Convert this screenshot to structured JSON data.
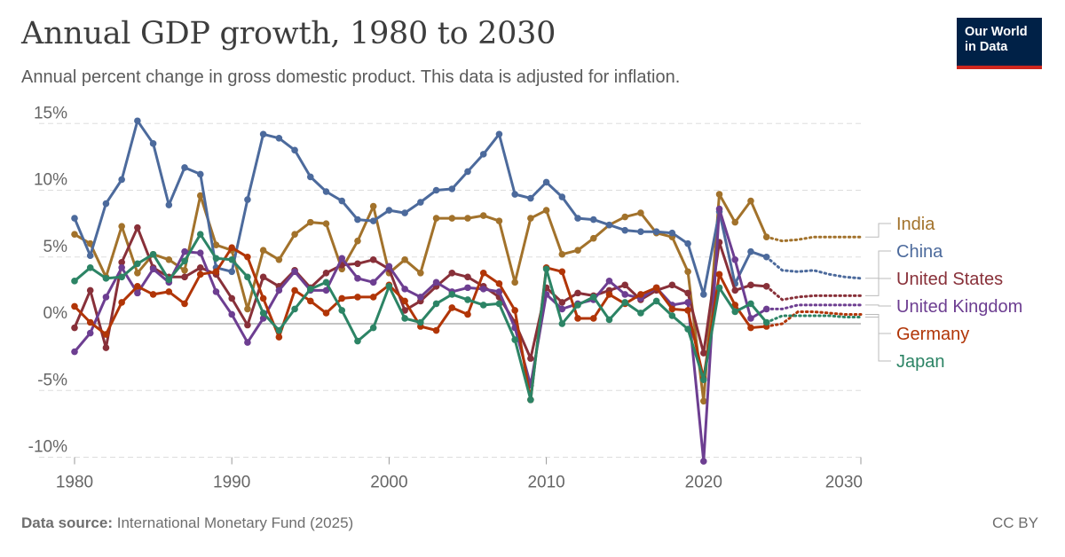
{
  "header": {
    "title": "Annual GDP growth, 1980 to 2030",
    "subtitle": "Annual percent change in gross domestic product. This data is adjusted for inflation.",
    "logo_line1": "Our World",
    "logo_line2": "in Data"
  },
  "footer": {
    "source_label": "Data source:",
    "source_text": "International Monetary Fund (2025)",
    "license": "CC BY"
  },
  "chart_data": {
    "type": "line",
    "title": "Annual GDP growth, 1980 to 2030",
    "subtitle": "Annual percent change in gross domestic product. This data is adjusted for inflation.",
    "xlim": [
      1980,
      2030
    ],
    "ylim": [
      -10,
      15
    ],
    "x_ticks": [
      1980,
      1990,
      2000,
      2010,
      2020,
      2030
    ],
    "x_tick_labels": [
      "1980",
      "1990",
      "2000",
      "2010",
      "2020",
      "2030"
    ],
    "y_ticks": [
      -10,
      -5,
      0,
      5,
      10,
      15
    ],
    "y_tick_labels": [
      "-10%",
      "-5%",
      "0%",
      "5%",
      "10%",
      "15%"
    ],
    "grid": "horizontal dashed",
    "legend": "right, labels at line ends",
    "observed_last_year": 2024,
    "forecast_style": "dotted",
    "series": [
      {
        "name": "India",
        "color": "#a2722b",
        "start": 1980,
        "values": [
          6.7,
          6.0,
          3.5,
          7.3,
          3.8,
          5.2,
          4.8,
          4.0,
          9.6,
          5.9,
          5.5,
          1.1,
          5.5,
          4.8,
          6.7,
          7.6,
          7.5,
          4.1,
          6.2,
          8.8,
          3.8,
          4.8,
          3.8,
          7.9,
          7.9,
          7.9,
          8.1,
          7.7,
          3.1,
          7.9,
          8.5,
          5.2,
          5.5,
          6.4,
          7.4,
          8.0,
          8.3,
          6.8,
          6.5,
          3.9,
          -5.8,
          9.7,
          7.6,
          9.2,
          6.5,
          6.2,
          6.3,
          6.5,
          6.5,
          6.5,
          6.5
        ]
      },
      {
        "name": "China",
        "color": "#4c6a9c",
        "start": 1980,
        "values": [
          7.9,
          5.1,
          9.0,
          10.8,
          15.2,
          13.5,
          8.9,
          11.7,
          11.2,
          4.2,
          3.9,
          9.3,
          14.2,
          13.9,
          13.0,
          11.0,
          9.9,
          9.2,
          7.8,
          7.7,
          8.5,
          8.3,
          9.1,
          10.0,
          10.1,
          11.4,
          12.7,
          14.2,
          9.7,
          9.4,
          10.6,
          9.5,
          7.9,
          7.8,
          7.4,
          7.0,
          6.9,
          6.9,
          6.8,
          6.0,
          2.2,
          8.4,
          3.0,
          5.4,
          5.0,
          4.0,
          3.9,
          4.0,
          3.7,
          3.5,
          3.4
        ]
      },
      {
        "name": "United States",
        "color": "#883039",
        "start": 1980,
        "values": [
          -0.3,
          2.5,
          -1.8,
          4.6,
          7.2,
          4.2,
          3.5,
          3.5,
          4.2,
          3.7,
          1.9,
          -0.1,
          3.5,
          2.8,
          4.0,
          2.7,
          3.8,
          4.4,
          4.5,
          4.8,
          4.1,
          1.0,
          1.7,
          2.8,
          3.8,
          3.5,
          2.8,
          2.0,
          0.1,
          -2.6,
          2.7,
          1.6,
          2.3,
          2.1,
          2.5,
          2.9,
          1.8,
          2.5,
          2.9,
          2.3,
          -2.2,
          6.1,
          2.5,
          2.9,
          2.8,
          1.8,
          2.0,
          2.1,
          2.1,
          2.1,
          2.1
        ]
      },
      {
        "name": "United Kingdom",
        "color": "#6d3e91",
        "start": 1980,
        "values": [
          -2.1,
          -0.7,
          2.0,
          4.2,
          2.3,
          4.1,
          3.1,
          5.4,
          5.3,
          2.4,
          0.7,
          -1.4,
          0.4,
          2.5,
          3.9,
          2.5,
          2.5,
          4.9,
          3.4,
          3.1,
          4.3,
          2.6,
          2.0,
          3.1,
          2.4,
          2.7,
          2.6,
          2.4,
          -0.3,
          -4.6,
          2.2,
          1.1,
          1.5,
          1.8,
          3.2,
          2.2,
          1.9,
          2.7,
          1.4,
          1.6,
          -10.3,
          8.6,
          4.8,
          0.4,
          1.1,
          1.1,
          1.4,
          1.4,
          1.4,
          1.4,
          1.4
        ]
      },
      {
        "name": "Germany",
        "color": "#b13507",
        "start": 1980,
        "values": [
          1.3,
          0.1,
          -0.8,
          1.6,
          2.8,
          2.2,
          2.4,
          1.5,
          3.7,
          3.9,
          5.7,
          5.0,
          1.9,
          -1.0,
          2.5,
          1.7,
          0.8,
          1.9,
          2.0,
          2.0,
          2.9,
          1.7,
          -0.2,
          -0.5,
          1.2,
          0.7,
          3.8,
          3.0,
          1.0,
          -5.7,
          4.2,
          3.9,
          0.4,
          0.4,
          2.2,
          1.5,
          2.2,
          2.7,
          1.1,
          1.0,
          -4.1,
          3.7,
          1.4,
          -0.3,
          -0.2,
          0.0,
          0.9,
          0.9,
          0.8,
          0.7,
          0.7
        ]
      },
      {
        "name": "Japan",
        "color": "#2c8465",
        "start": 1980,
        "values": [
          3.2,
          4.2,
          3.4,
          3.5,
          4.5,
          5.2,
          3.3,
          4.7,
          6.7,
          4.9,
          4.8,
          3.5,
          0.8,
          -0.5,
          1.1,
          2.6,
          3.1,
          1.0,
          -1.3,
          -0.3,
          2.8,
          0.4,
          0.1,
          1.5,
          2.2,
          1.8,
          1.4,
          1.5,
          -1.2,
          -5.7,
          4.1,
          0.0,
          1.4,
          2.0,
          0.3,
          1.6,
          0.8,
          1.7,
          0.6,
          -0.4,
          -4.2,
          2.7,
          0.9,
          1.5,
          0.1,
          0.6,
          0.6,
          0.6,
          0.6,
          0.5,
          0.5
        ]
      }
    ]
  }
}
